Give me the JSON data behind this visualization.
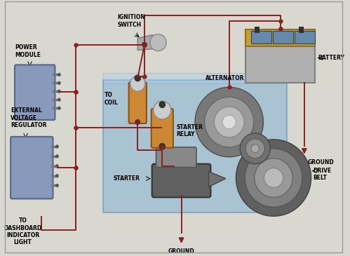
{
  "bg": "#d8d8d0",
  "wire_color": "#8B2020",
  "wire_lw": 1.4,
  "labels": {
    "ignition_switch": "IGNITION\nSWITCH",
    "power_module": "POWER\nMODULE",
    "ext_voltage": "EXTERNAL\nVOLTAGE\nREGULATOR",
    "to_coil": "TO\nCOIL",
    "starter_relay": "STARTER\nRELAY",
    "battery": "BATTERY",
    "alternator": "ALTERNATOR",
    "starter": "STARTER",
    "drive_belt": "DRIVE\nBELT",
    "ground1": "GROUND",
    "ground2": "GROUND",
    "dashboard": "TO\nDASHBOARD\nINDICATOR\nLIGHT"
  },
  "engine_fc": "#7BAFD4",
  "engine_ec": "#5588BB",
  "engine_alpha": 0.6,
  "bat_body_fc": "#B0B0B0",
  "bat_top_fc": "#C8A030",
  "bat_cell_fc": "#6688AA",
  "pm_fc": "#8899BB",
  "pm_ec": "#556688",
  "coil_fc": "#CC8833",
  "alt_fc": "#909090",
  "starter_fc": "#606060",
  "pulley_fc": "#707070",
  "belt_fc": "#303030",
  "text_fs": 5.5,
  "label_fs": 5.5
}
